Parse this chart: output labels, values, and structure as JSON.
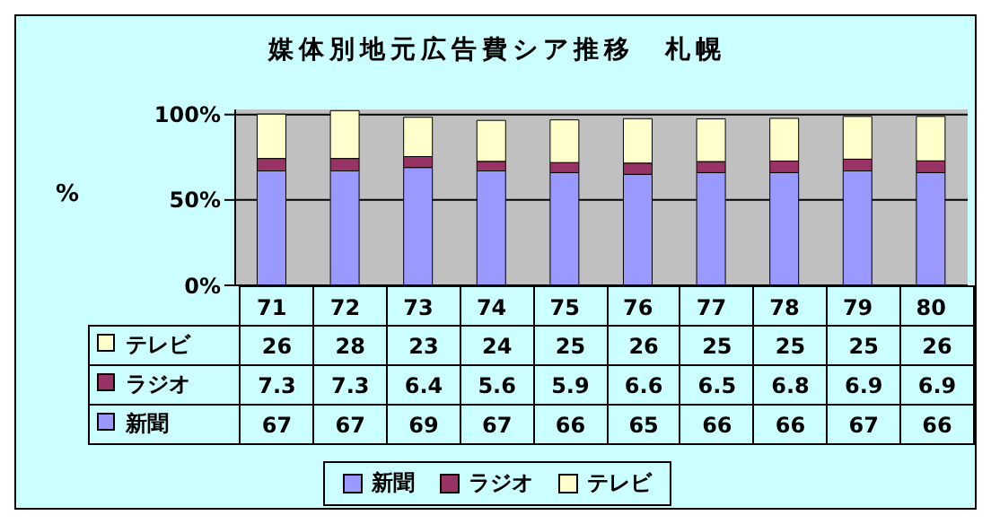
{
  "chart_data": {
    "type": "bar",
    "title": "媒体別地元広告費シア推移　札幌",
    "ylabel": "%",
    "stacked": true,
    "categories": [
      "71",
      "72",
      "73",
      "74",
      "75",
      "76",
      "77",
      "78",
      "79",
      "80"
    ],
    "series": [
      {
        "name": "新聞",
        "color": "#9999ff",
        "values": [
          67,
          67,
          69,
          67,
          66,
          65,
          66,
          66,
          67,
          66
        ]
      },
      {
        "name": "ラジオ",
        "color": "#993366",
        "values": [
          7.3,
          7.3,
          6.4,
          5.6,
          5.9,
          6.6,
          6.5,
          6.8,
          6.9,
          6.9
        ]
      },
      {
        "name": "テレビ",
        "color": "#ffffcc",
        "values": [
          26,
          28,
          23,
          24,
          25,
          26,
          25,
          25,
          25,
          26
        ]
      }
    ],
    "ylim": [
      0,
      103
    ],
    "yticks": [
      {
        "value": 0,
        "label": "0%"
      },
      {
        "value": 50,
        "label": "50%"
      },
      {
        "value": 100,
        "label": "100%"
      }
    ],
    "grid": "y",
    "legend": "bottom",
    "data_labels": true
  }
}
